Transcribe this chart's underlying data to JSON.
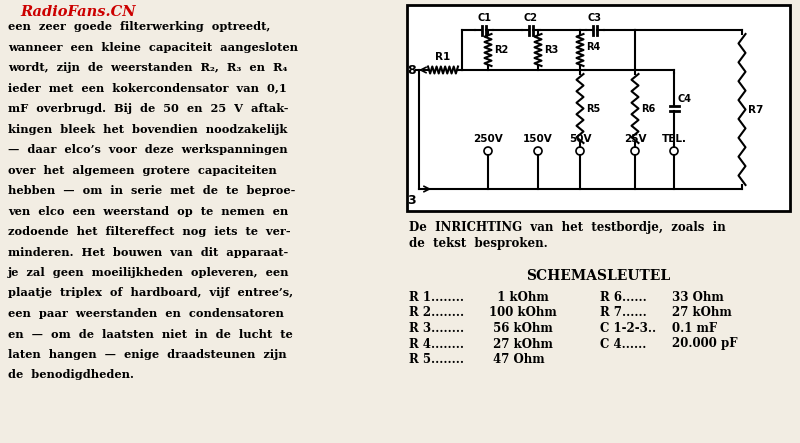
{
  "bg_color": "#f2ede3",
  "watermark_text": "RadioFans.CN",
  "watermark_color": "#cc0000",
  "left_text_lines": [
    "een  zeer  goede  filterwerking  optreedt,",
    "wanneer  een  kleine  capaciteit  aangesloten",
    "wordt,  zijn  de  weerstanden  R₂,  R₃  en  R₄",
    "ieder  met  een  kokercondensator  van  0,1",
    "mF  overbrugd.  Bij  de  50  en  25  V  aftak-",
    "kingen  bleek  het  bovendien  noodzakelijk",
    "—  daar  elco’s  voor  deze  werkspanningen",
    "over  het  algemeen  grotere  capaciteiten",
    "hebben  —  om  in  serie  met  de  te  beproe-",
    "ven  elco  een  weerstand  op  te  nemen  en",
    "zodoende  het  filtereffect  nog  iets  te  ver-",
    "minderen.  Het  bouwen  van  dit  apparaat-",
    "je  zal  geen  moeilijkheden  opleveren,  een",
    "plaatje  triplex  of  hardboard,  vijf  entree’s,",
    "een  paar  weerstanden  en  condensatoren",
    "en  —  om  de  laatsten  niet  in  de  lucht  te",
    "laten  hangen  —  enige  draadsteunen  zijn",
    "de  benodigdheden."
  ],
  "caption_line1": "De  INRICHTING  van  het  testbordje,  zoals  in",
  "caption_line2": "de  tekst  besproken.",
  "schemasleutel_title": "SCHEMASLEUTEL",
  "schema_left": [
    [
      "R 1........",
      "  1 kOhm"
    ],
    [
      "R 2........",
      "100 kOhm"
    ],
    [
      "R 3........",
      " 56 kOhm"
    ],
    [
      "R 4........",
      " 27 kOhm"
    ],
    [
      "R 5........",
      " 47 Ohm"
    ]
  ],
  "schema_right": [
    [
      "R 6......",
      "33 Ohm"
    ],
    [
      "R 7......",
      "27 kOhm"
    ],
    [
      "C 1-2-3..",
      "0.1 mF"
    ],
    [
      "C 4......",
      "20.000 pF"
    ]
  ]
}
